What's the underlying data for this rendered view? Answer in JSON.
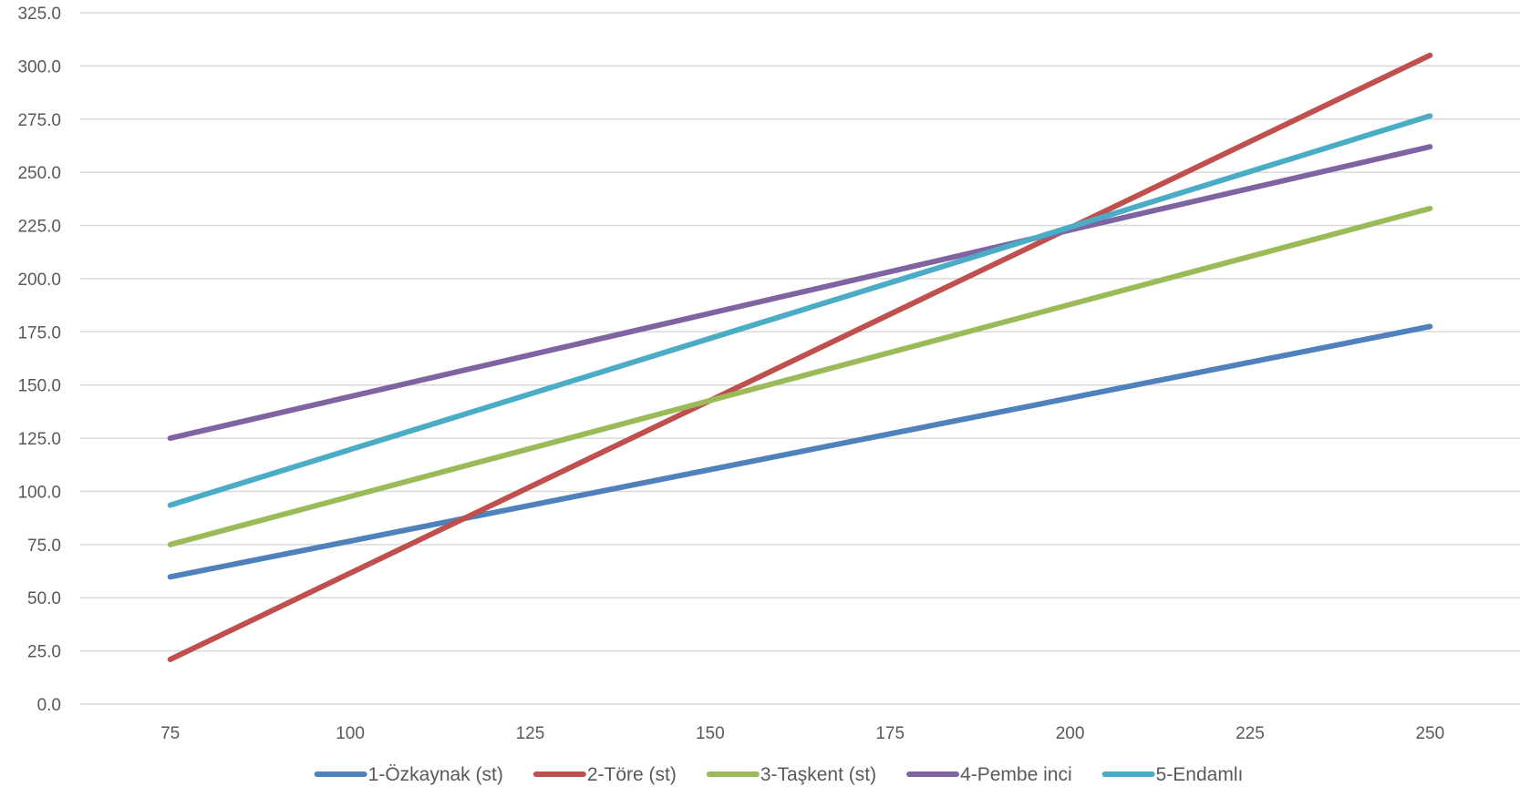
{
  "chart_data": {
    "type": "line",
    "title": "",
    "xlabel": "",
    "ylabel": "",
    "x": [
      75,
      250
    ],
    "xlim": [
      62.5,
      262.5
    ],
    "xticks": [
      "75",
      "100",
      "125",
      "150",
      "175",
      "200",
      "225",
      "250"
    ],
    "ylim": [
      0,
      325
    ],
    "yticks": [
      "0.0",
      "25.0",
      "50.0",
      "75.0",
      "100.0",
      "125.0",
      "150.0",
      "175.0",
      "200.0",
      "225.0",
      "250.0",
      "275.0",
      "300.0",
      "325.0"
    ],
    "grid": true,
    "legend_position": "bottom",
    "series": [
      {
        "name": "1-Özkaynak (st)",
        "color": "#4f81bd",
        "values": [
          59.8,
          177.5
        ]
      },
      {
        "name": "2-Töre (st)",
        "color": "#c0504d",
        "values": [
          21.0,
          305.0
        ]
      },
      {
        "name": "3-Taşkent (st)",
        "color": "#9bbb59",
        "values": [
          75.0,
          233.0
        ]
      },
      {
        "name": "4-Pembe inci",
        "color": "#8064a2",
        "values": [
          125.0,
          262.0
        ]
      },
      {
        "name": "5-Endamlı",
        "color": "#4bacc6",
        "values": [
          93.5,
          276.5
        ]
      }
    ]
  }
}
